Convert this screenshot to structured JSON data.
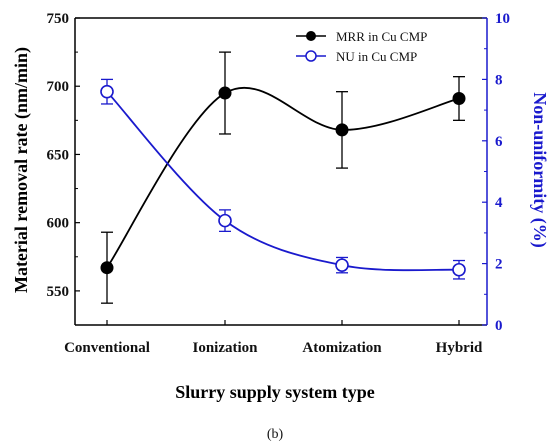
{
  "colors": {
    "mrr": "#000000",
    "nu": "#1a1acd",
    "axis_left": "#000000",
    "axis_right": "#1a1acd"
  },
  "caption": "(b)",
  "chart_data": {
    "type": "line",
    "categories": [
      "Conventional",
      "Ionization",
      "Atomization",
      "Hybrid"
    ],
    "xlabel": "Slurry supply system type",
    "ylabel_left": "Material removal rate (nm/min)",
    "ylabel_right": "Non-uniformity (%)",
    "ylim_left": [
      525,
      750
    ],
    "yticks_left": [
      550,
      600,
      650,
      700,
      750
    ],
    "ylim_right": [
      0,
      10
    ],
    "yticks_right": [
      0,
      2,
      4,
      6,
      8,
      10
    ],
    "legend_position": "top-right",
    "series": [
      {
        "name": "MRR in Cu CMP",
        "axis": "left",
        "marker": "filled-circle",
        "color": "#000000",
        "values": [
          567,
          695,
          668,
          691
        ],
        "error": [
          26,
          30,
          28,
          16
        ]
      },
      {
        "name": "NU in Cu CMP",
        "axis": "right",
        "marker": "open-circle",
        "color": "#1a1acd",
        "values": [
          7.6,
          3.4,
          1.95,
          1.8
        ],
        "error": [
          0.4,
          0.35,
          0.25,
          0.3
        ]
      }
    ]
  }
}
